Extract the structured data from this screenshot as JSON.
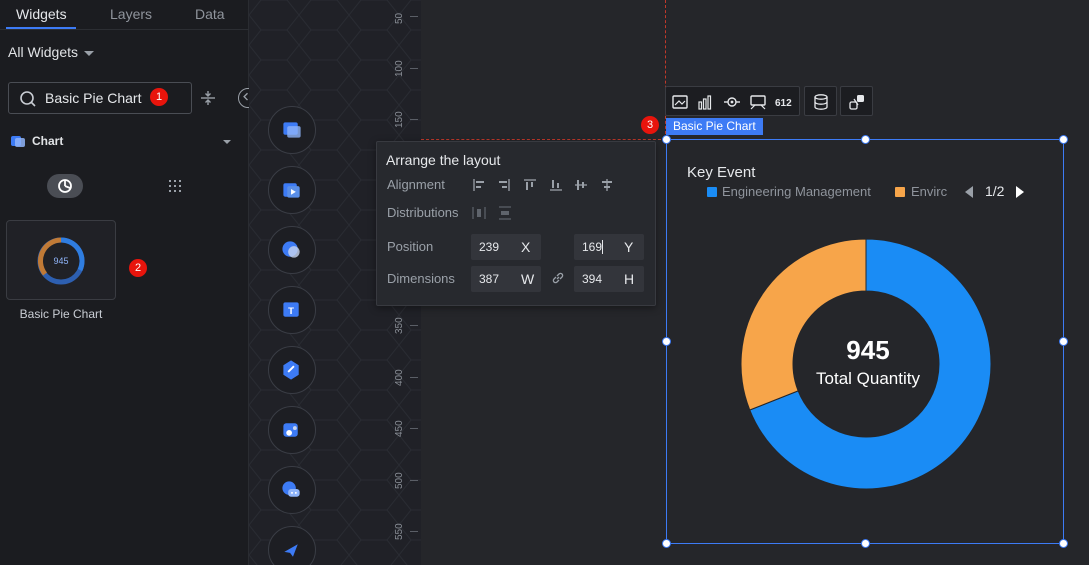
{
  "left_panel": {
    "tabs": [
      {
        "label": "Widgets"
      },
      {
        "label": "Layers"
      },
      {
        "label": "Data"
      }
    ],
    "filter_label": "All Widgets",
    "search": {
      "value": "Basic Pie Chart",
      "step_badge": "1"
    },
    "category": {
      "label": "Chart"
    },
    "widget": {
      "label": "Basic Pie Chart",
      "thumb_value": "945",
      "step_badge": "2"
    }
  },
  "ruler": {
    "labels": [
      "50",
      "100",
      "150",
      "350",
      "400",
      "450",
      "500",
      "550"
    ]
  },
  "arrange_panel": {
    "title": "Arrange the layout",
    "alignment_label": "Alignment",
    "distributions_label": "Distributions",
    "position_label": "Position",
    "dimensions_label": "Dimensions",
    "x_value": "239",
    "x_unit": "X",
    "y_value": "169",
    "y_unit": "Y",
    "w_value": "387",
    "w_unit": "W",
    "h_value": "394",
    "h_unit": "H"
  },
  "canvas_widget": {
    "name_tag": "Basic Pie Chart",
    "step_badge": "3",
    "title": "Key Event",
    "legend": [
      {
        "label": "Engineering Management",
        "color": "#1a8cf5"
      },
      {
        "label": "Envirc",
        "color": "#f7a54a"
      }
    ],
    "pager": "1/2",
    "center_value": "945",
    "center_label": "Total Quantity"
  },
  "chart_data": {
    "type": "pie",
    "title": "Key Event",
    "series": [
      {
        "name": "Engineering Management",
        "value": 0.69,
        "color": "#1a8cf5"
      },
      {
        "name": "Envirc",
        "value": 0.31,
        "color": "#f7a54a"
      }
    ],
    "total": 945,
    "total_label": "Total Quantity",
    "legend_position": "top-left"
  },
  "colors": {
    "accent": "#3d7bf5",
    "badge": "#e8140c",
    "donut_blue": "#1a8cf5",
    "donut_orange": "#f7a54a"
  },
  "icons": [
    "search-icon",
    "filter-icon",
    "collapse-icon",
    "chart-category-icon",
    "pie-toggle-icon",
    "grid-icon",
    "link-icon",
    "prev-icon",
    "next-icon"
  ]
}
